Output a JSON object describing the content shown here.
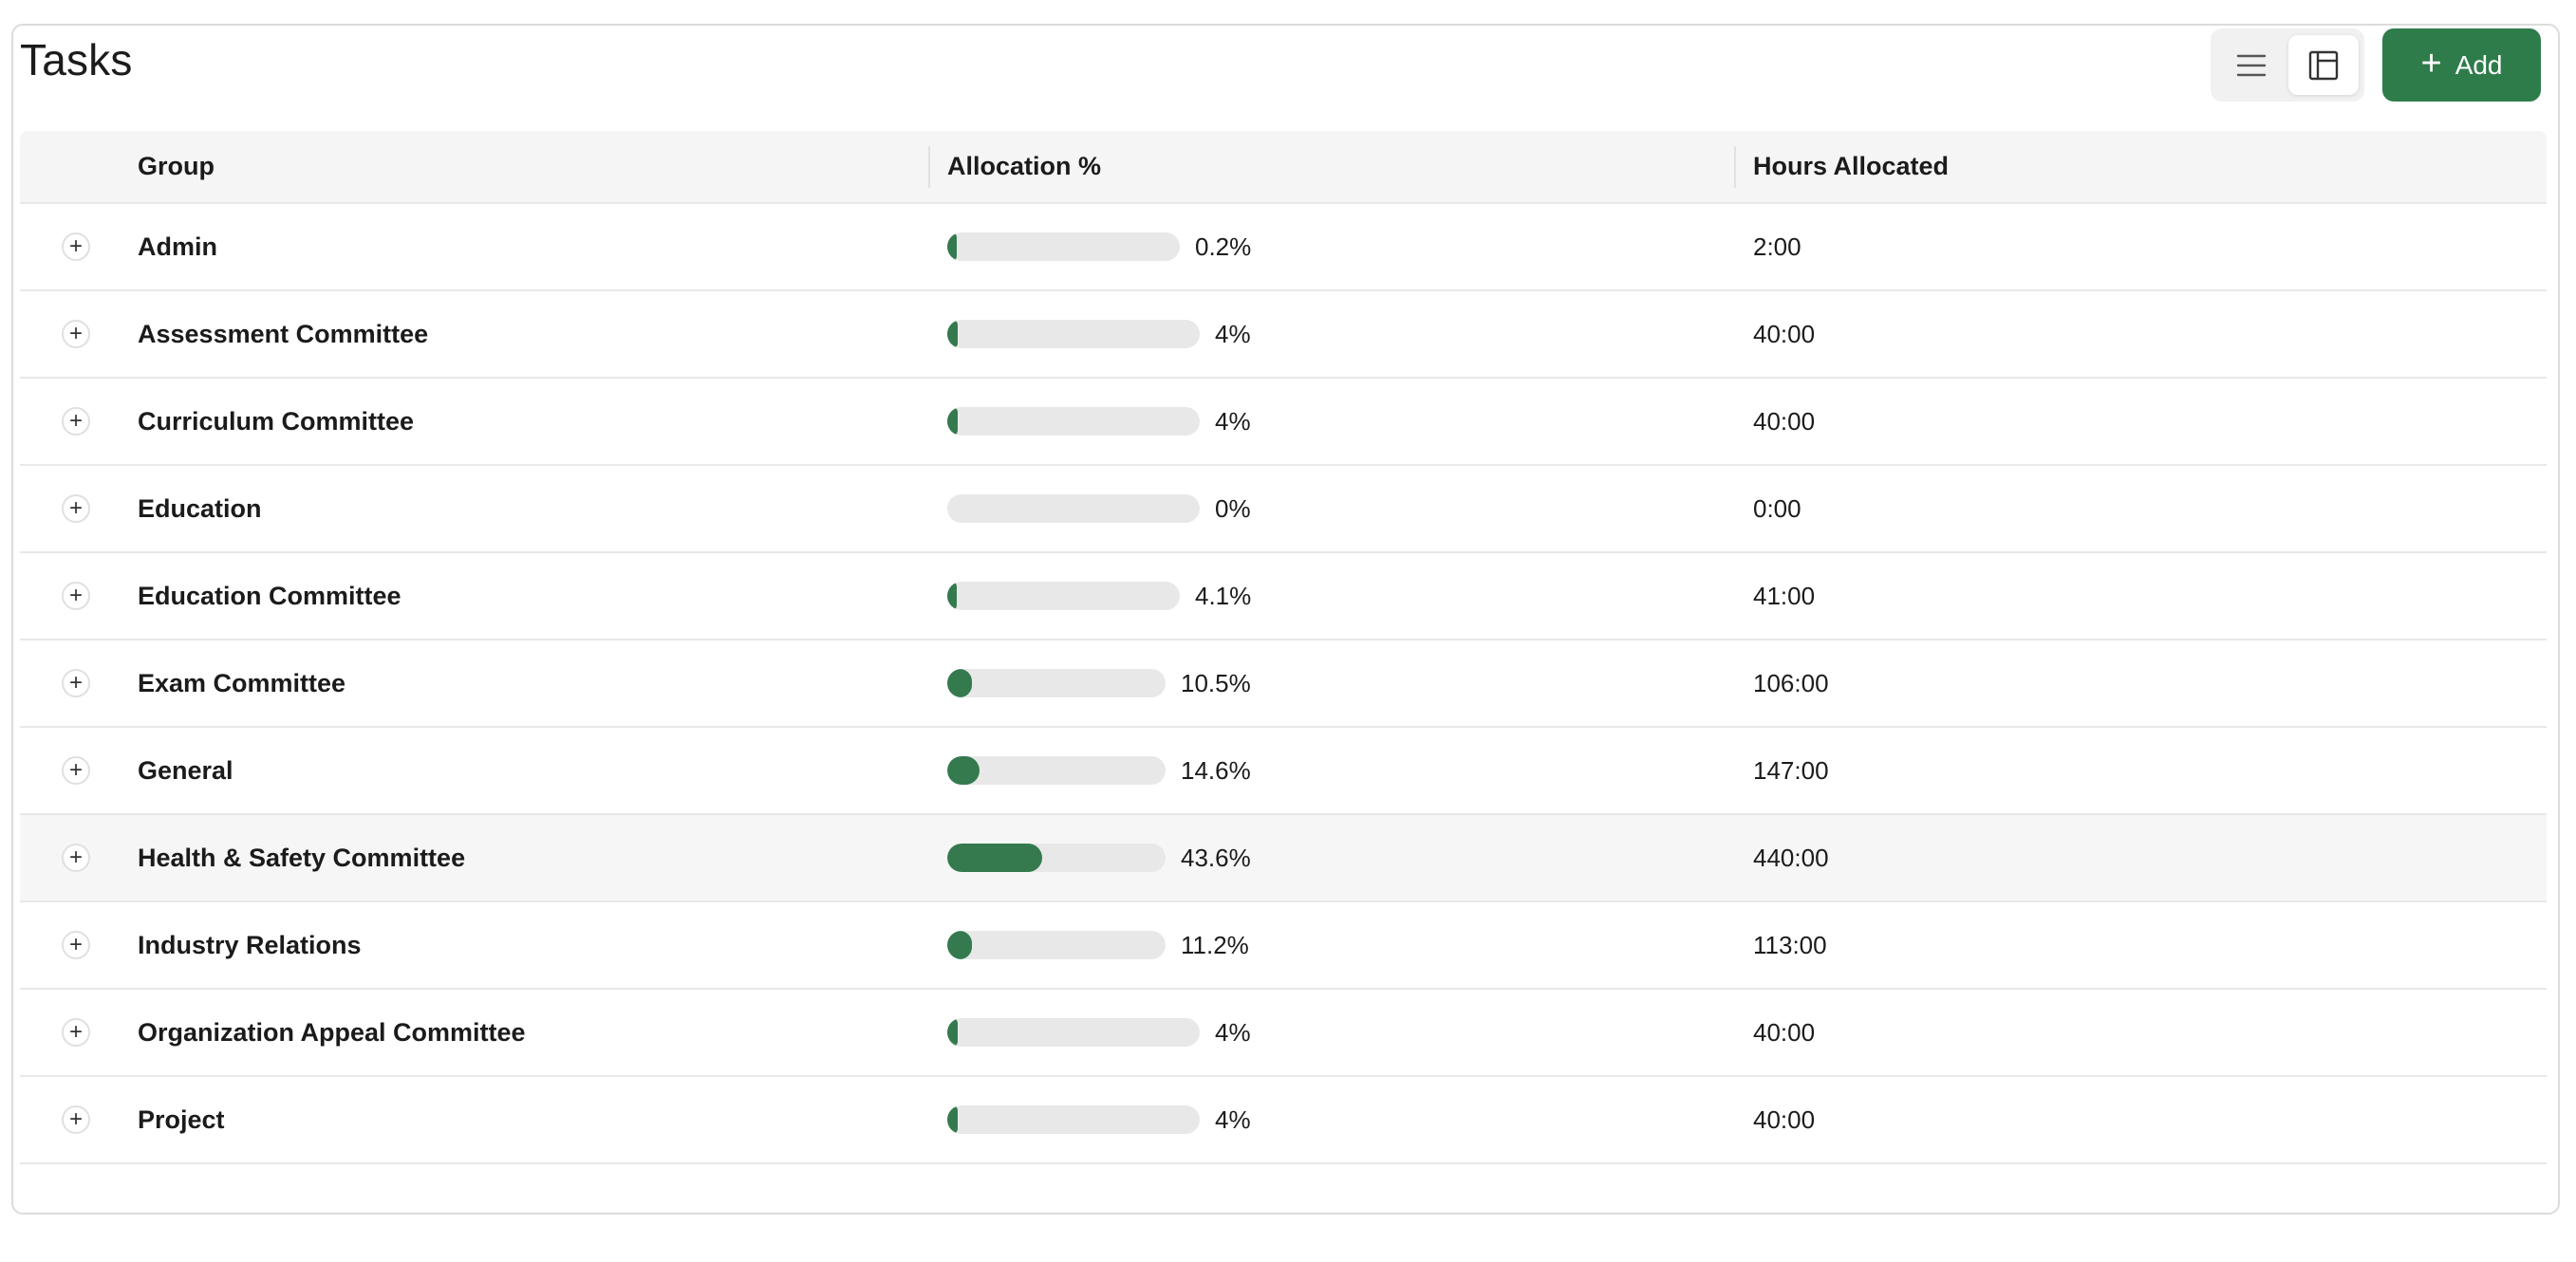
{
  "page": {
    "title": "Tasks"
  },
  "toolbar": {
    "list_view_icon": "list-lines-icon",
    "grid_view_icon": "layout-panel-icon",
    "add_label": "Add",
    "add_icon": "plus-icon"
  },
  "colors": {
    "accent": "#2f7c4b",
    "bar_fill": "#347a4e",
    "bar_track": "#e8e8e8"
  },
  "table": {
    "columns": {
      "group": "Group",
      "allocation": "Allocation %",
      "hours": "Hours Allocated"
    },
    "rows": [
      {
        "group": "Admin",
        "allocation_label": "0.2%",
        "allocation": 0.2,
        "hours": "2:00"
      },
      {
        "group": "Assessment Committee",
        "allocation_label": "4%",
        "allocation": 4,
        "hours": "40:00"
      },
      {
        "group": "Curriculum Committee",
        "allocation_label": "4%",
        "allocation": 4,
        "hours": "40:00"
      },
      {
        "group": "Education",
        "allocation_label": "0%",
        "allocation": 0,
        "hours": "0:00"
      },
      {
        "group": "Education Committee",
        "allocation_label": "4.1%",
        "allocation": 4.1,
        "hours": "41:00"
      },
      {
        "group": "Exam Committee",
        "allocation_label": "10.5%",
        "allocation": 10.5,
        "hours": "106:00"
      },
      {
        "group": "General",
        "allocation_label": "14.6%",
        "allocation": 14.6,
        "hours": "147:00"
      },
      {
        "group": "Health & Safety Committee",
        "allocation_label": "43.6%",
        "allocation": 43.6,
        "hours": "440:00",
        "highlighted": true
      },
      {
        "group": "Industry Relations",
        "allocation_label": "11.2%",
        "allocation": 11.2,
        "hours": "113:00"
      },
      {
        "group": "Organization Appeal Committee",
        "allocation_label": "4%",
        "allocation": 4,
        "hours": "40:00"
      },
      {
        "group": "Project",
        "allocation_label": "4%",
        "allocation": 4,
        "hours": "40:00"
      }
    ]
  }
}
